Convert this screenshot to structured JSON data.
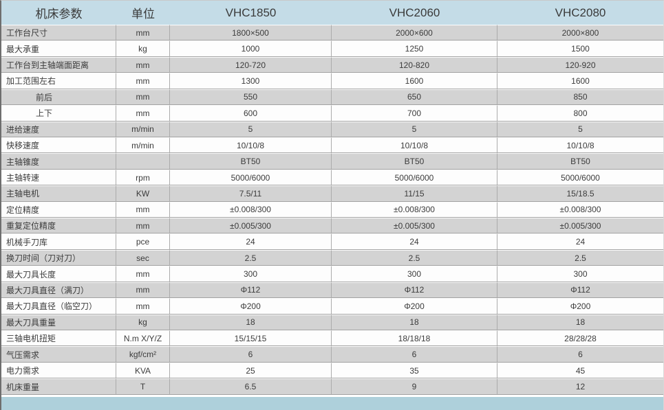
{
  "table": {
    "columns": [
      "机床参数",
      "单位",
      "VHC1850",
      "VHC2060",
      "VHC2080"
    ],
    "rows": [
      {
        "label": "工作台尺寸",
        "unit": "mm",
        "values": [
          "1800×500",
          "2000×600",
          "2000×800"
        ],
        "indent": false
      },
      {
        "label": "最大承重",
        "unit": "kg",
        "values": [
          "1000",
          "1250",
          "1500"
        ],
        "indent": false
      },
      {
        "label": "工作台到主轴端面距离",
        "unit": "mm",
        "values": [
          "120-720",
          "120-820",
          "120-920"
        ],
        "indent": false
      },
      {
        "label": "加工范围左右",
        "unit": "mm",
        "values": [
          "1300",
          "1600",
          "1600"
        ],
        "indent": false
      },
      {
        "label": "前后",
        "unit": "mm",
        "values": [
          "550",
          "650",
          "850"
        ],
        "indent": true
      },
      {
        "label": "上下",
        "unit": "mm",
        "values": [
          "600",
          "700",
          "800"
        ],
        "indent": true
      },
      {
        "label": "进给速度",
        "unit": "m/min",
        "values": [
          "5",
          "5",
          "5"
        ],
        "indent": false
      },
      {
        "label": "快移速度",
        "unit": "m/min",
        "values": [
          "10/10/8",
          "10/10/8",
          "10/10/8"
        ],
        "indent": false
      },
      {
        "label": "主轴锥度",
        "unit": "",
        "values": [
          "BT50",
          "BT50",
          "BT50"
        ],
        "indent": false
      },
      {
        "label": "主轴转速",
        "unit": "rpm",
        "values": [
          "5000/6000",
          "5000/6000",
          "5000/6000"
        ],
        "indent": false
      },
      {
        "label": "主轴电机",
        "unit": "KW",
        "values": [
          "7.5/11",
          "11/15",
          "15/18.5"
        ],
        "indent": false
      },
      {
        "label": "定位精度",
        "unit": "mm",
        "values": [
          "±0.008/300",
          "±0.008/300",
          "±0.008/300"
        ],
        "indent": false
      },
      {
        "label": "重复定位精度",
        "unit": "mm",
        "values": [
          "±0.005/300",
          "±0.005/300",
          "±0.005/300"
        ],
        "indent": false
      },
      {
        "label": "机械手刀库",
        "unit": "pce",
        "values": [
          "24",
          "24",
          "24"
        ],
        "indent": false
      },
      {
        "label": "换刀时间（刀对刀）",
        "unit": "sec",
        "values": [
          "2.5",
          "2.5",
          "2.5"
        ],
        "indent": false
      },
      {
        "label": "最大刀具长度",
        "unit": "mm",
        "values": [
          "300",
          "300",
          "300"
        ],
        "indent": false
      },
      {
        "label": "最大刀具直径（满刀）",
        "unit": "mm",
        "values": [
          "Φ112",
          "Φ112",
          "Φ112"
        ],
        "indent": false
      },
      {
        "label": "最大刀具直径（临空刀）",
        "unit": "mm",
        "values": [
          "Φ200",
          "Φ200",
          "Φ200"
        ],
        "indent": false
      },
      {
        "label": "最大刀具重量",
        "unit": "kg",
        "values": [
          "18",
          "18",
          "18"
        ],
        "indent": false
      },
      {
        "label": "三轴电机扭矩",
        "unit": "N.m X/Y/Z",
        "values": [
          "15/15/15",
          "18/18/18",
          "28/28/28"
        ],
        "indent": false
      },
      {
        "label": "气压需求",
        "unit": "kgf/cm²",
        "values": [
          "6",
          "6",
          "6"
        ],
        "indent": false
      },
      {
        "label": "电力需求",
        "unit": "KVA",
        "values": [
          "25",
          "35",
          "45"
        ],
        "indent": false
      },
      {
        "label": "机床重量",
        "unit": "T",
        "values": [
          "6.5",
          "9",
          "12"
        ],
        "indent": false
      }
    ],
    "colors": {
      "header_bg": "#c4dce7",
      "row_shaded_bg": "#d3d3d3",
      "row_white_bg": "#fdfdfd",
      "footer_bar_bg": "#aed0db",
      "border": "#a2a2a2",
      "left_frame": "#6e6e6e",
      "text": "#3b3b3b"
    }
  }
}
